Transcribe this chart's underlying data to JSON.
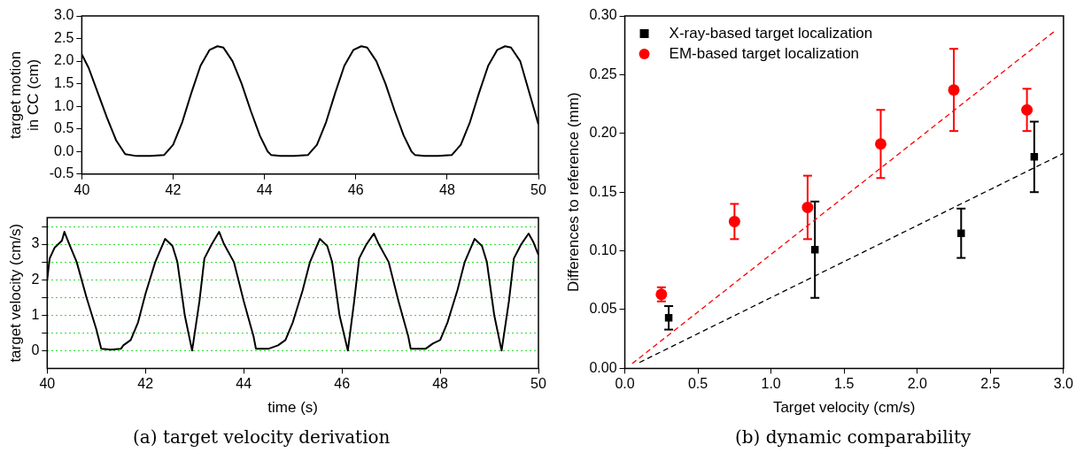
{
  "chart_data": [
    {
      "type": "line",
      "ylabel": "target motion\nin CC (cm)",
      "xlim": [
        40,
        50
      ],
      "xticks": [
        40,
        42,
        44,
        46,
        48,
        50
      ],
      "ylim": [
        -0.5,
        3
      ],
      "yticks": [
        -0.5,
        {
          "value": 0,
          "label": "0.0"
        },
        0.5,
        {
          "value": 1,
          "label": "1.0"
        },
        1.5,
        {
          "value": 2,
          "label": "2.0"
        },
        2.5,
        {
          "value": 3,
          "label": "3.0"
        }
      ],
      "marker": "none",
      "line_style": "solid",
      "series": [
        {
          "color": "#000000",
          "x": [
            40.0,
            40.15,
            40.35,
            40.55,
            40.75,
            40.95,
            41.2,
            41.5,
            41.8,
            42.0,
            42.2,
            42.4,
            42.6,
            42.8,
            42.97,
            43.1,
            43.3,
            43.5,
            43.7,
            43.9,
            44.07,
            44.15,
            44.35,
            44.65,
            44.95,
            45.15,
            45.35,
            45.55,
            45.75,
            45.95,
            46.12,
            46.25,
            46.45,
            46.65,
            46.85,
            47.05,
            47.22,
            47.3,
            47.5,
            47.8,
            48.1,
            48.3,
            48.5,
            48.7,
            48.9,
            49.1,
            49.27,
            49.4,
            49.6,
            49.8,
            50.0
          ],
          "values": [
            2.15,
            1.85,
            1.3,
            0.75,
            0.25,
            -0.06,
            -0.1,
            -0.1,
            -0.08,
            0.15,
            0.65,
            1.3,
            1.9,
            2.25,
            2.33,
            2.3,
            2.0,
            1.5,
            0.9,
            0.35,
            0.0,
            -0.08,
            -0.1,
            -0.1,
            -0.08,
            0.15,
            0.65,
            1.3,
            1.9,
            2.25,
            2.33,
            2.3,
            2.0,
            1.5,
            0.9,
            0.35,
            0.0,
            -0.08,
            -0.1,
            -0.1,
            -0.08,
            0.15,
            0.65,
            1.3,
            1.9,
            2.25,
            2.33,
            2.3,
            2.0,
            1.3,
            0.6
          ]
        }
      ]
    },
    {
      "type": "line",
      "xlabel": "time (s)",
      "ylabel": "target velocity (cm/s)",
      "xlim": [
        40,
        50
      ],
      "xticks": [
        40,
        42,
        44,
        46,
        48,
        50
      ],
      "ylim": [
        -0.5,
        3.75
      ],
      "yticks": [
        0,
        {
          "value": 0.5,
          "label": null
        },
        1,
        {
          "value": 1.5,
          "label": null
        },
        2,
        {
          "value": 2.5,
          "label": null
        },
        3,
        {
          "value": 3.5,
          "label": null
        }
      ],
      "grid": "y",
      "marker": "none",
      "line_style": "solid",
      "annotations": [
        "(a) target velocity derivation"
      ],
      "series": [
        {
          "color": "#000000",
          "x": [
            40.0,
            40.05,
            40.15,
            40.3,
            40.35,
            40.45,
            40.6,
            40.8,
            41.0,
            41.1,
            41.3,
            41.5,
            41.55,
            41.7,
            41.85,
            42.0,
            42.2,
            42.4,
            42.55,
            42.65,
            42.8,
            42.95,
            43.1,
            43.2,
            43.35,
            43.5,
            43.6,
            43.8,
            44.0,
            44.2,
            44.25,
            44.5,
            44.7,
            44.85,
            45.0,
            45.2,
            45.35,
            45.55,
            45.7,
            45.8,
            45.95,
            46.12,
            46.25,
            46.35,
            46.5,
            46.65,
            46.75,
            46.95,
            47.15,
            47.35,
            47.4,
            47.7,
            47.85,
            48.0,
            48.15,
            48.35,
            48.5,
            48.7,
            48.85,
            48.95,
            49.1,
            49.25,
            49.4,
            49.5,
            49.65,
            49.8,
            49.9,
            50.0
          ],
          "values": [
            2.0,
            2.6,
            2.9,
            3.1,
            3.35,
            3.0,
            2.5,
            1.5,
            0.6,
            0.05,
            0.03,
            0.05,
            0.15,
            0.3,
            0.8,
            1.6,
            2.5,
            3.15,
            2.95,
            2.5,
            1.0,
            0.0,
            1.4,
            2.6,
            3.0,
            3.35,
            3.0,
            2.5,
            1.4,
            0.4,
            0.05,
            0.05,
            0.15,
            0.3,
            0.8,
            1.7,
            2.5,
            3.15,
            2.95,
            2.5,
            1.0,
            0.0,
            1.4,
            2.6,
            3.0,
            3.3,
            3.0,
            2.5,
            1.4,
            0.4,
            0.05,
            0.05,
            0.2,
            0.3,
            0.8,
            1.7,
            2.5,
            3.15,
            2.95,
            2.5,
            1.0,
            0.0,
            1.4,
            2.6,
            3.0,
            3.3,
            3.05,
            2.7
          ]
        }
      ]
    },
    {
      "type": "scatter",
      "xlabel": "Target velocity (cm/s)",
      "ylabel": "Differences to reference (mm)",
      "xlim": [
        0,
        3
      ],
      "xticks": [
        {
          "value": 0,
          "label": "0.0"
        },
        0.5,
        {
          "value": 1,
          "label": "1.0"
        },
        1.5,
        {
          "value": 2,
          "label": "2.0"
        },
        2.5,
        {
          "value": 3,
          "label": "3.0"
        }
      ],
      "ylim": [
        0,
        0.3
      ],
      "yticks": [
        {
          "value": 0,
          "label": "0.00"
        },
        0.05,
        {
          "value": 0.1,
          "label": "0.10"
        },
        0.15,
        {
          "value": 0.2,
          "label": "0.20"
        },
        0.25,
        {
          "value": 0.3,
          "label": "0.30"
        }
      ],
      "legend": "top left",
      "annotations": [
        "(b) dynamic comparability"
      ],
      "series": [
        {
          "name": "X-ray-based target localization",
          "color": "#000000",
          "marker": "square",
          "x": [
            0.3,
            1.3,
            2.3,
            2.8
          ],
          "values": [
            0.043,
            0.101,
            0.115,
            0.18
          ],
          "errors": [
            0.01,
            0.041,
            0.021,
            0.03
          ]
        },
        {
          "name": "EM-based target localization",
          "color": "#ff0000",
          "marker": "circle",
          "x": [
            0.25,
            0.75,
            1.25,
            1.75,
            2.25,
            2.75
          ],
          "values": [
            0.063,
            0.125,
            0.137,
            0.191,
            0.237,
            0.22
          ],
          "errors": [
            0.006,
            0.015,
            0.027,
            0.029,
            0.035,
            0.018
          ]
        },
        {
          "type": "line",
          "color": "#ff0000",
          "marker": "none",
          "line_style": "dashed",
          "x": [
            0.05,
            2.95
          ],
          "values": [
            0.004,
            0.288
          ]
        },
        {
          "type": "line",
          "color": "#000000",
          "marker": "none",
          "line_style": "dashed",
          "x": [
            0.1,
            3.0
          ],
          "values": [
            0.005,
            0.183
          ]
        }
      ]
    }
  ]
}
